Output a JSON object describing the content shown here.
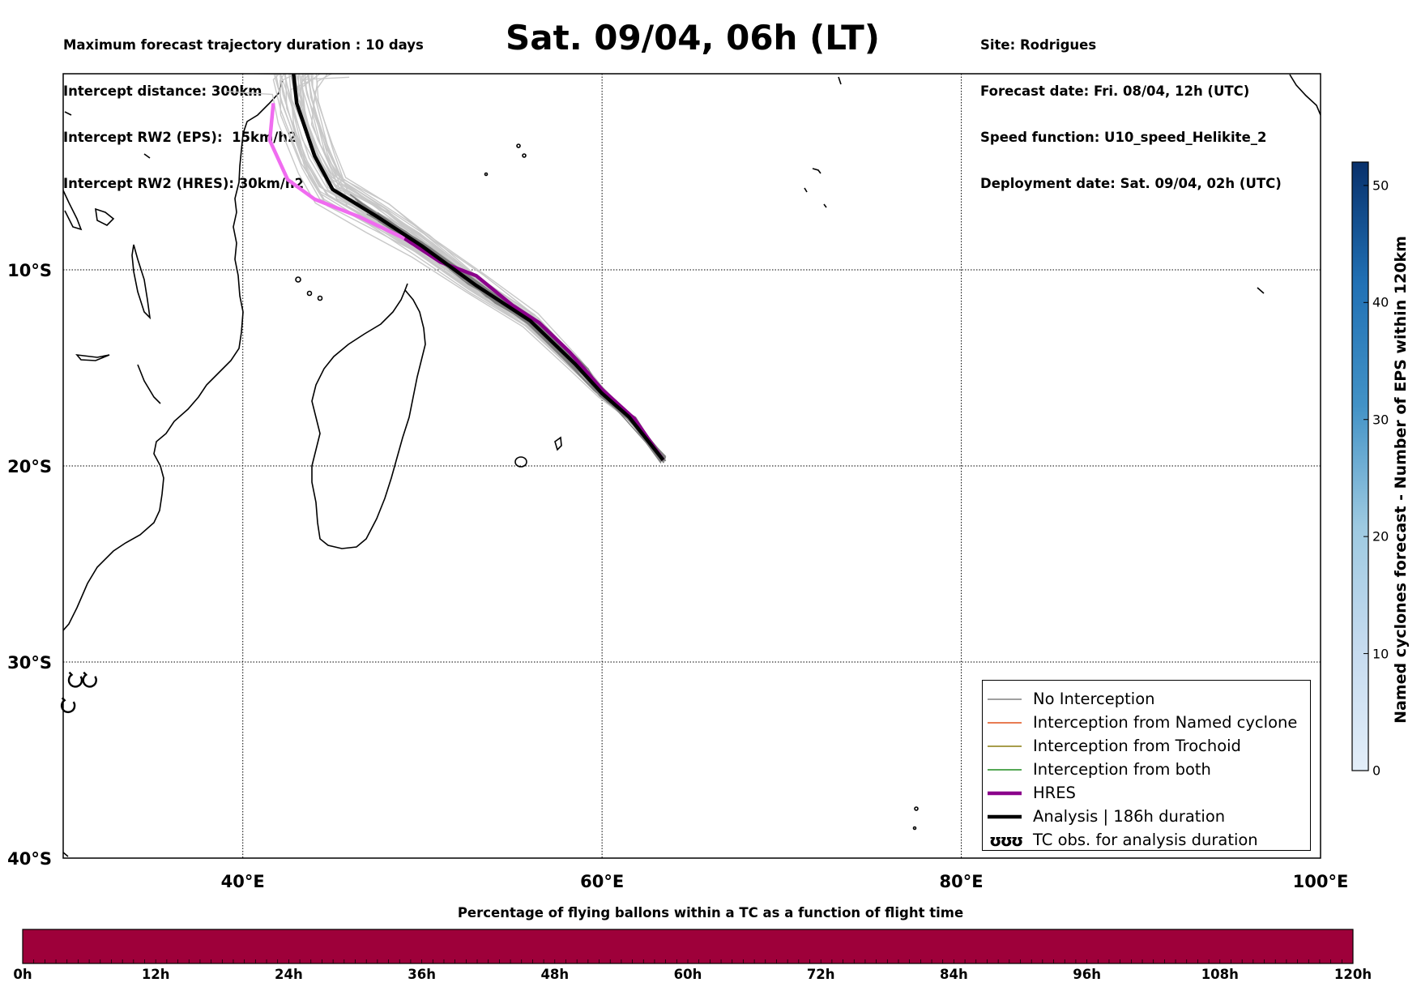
{
  "header": {
    "left_lines": [
      "Maximum forecast trajectory duration : 10 days",
      "Intercept distance: 300km",
      "Intercept RW2 (EPS):  15km/h2",
      "Intercept RW2 (HRES): 30km/h2"
    ],
    "title": "Sat. 09/04, 06h (LT)",
    "right_lines": [
      "Site: Rodrigues",
      "Forecast date: Fri. 08/04, 12h (UTC)",
      "Speed function: U10_speed_Helikite_2",
      "Deployment date: Sat. 09/04, 02h (UTC)"
    ]
  },
  "map": {
    "lon_range": [
      30,
      100
    ],
    "lat_range": [
      -40,
      0
    ],
    "lon_ticks": [
      {
        "value": 40,
        "label": "40°E"
      },
      {
        "value": 60,
        "label": "60°E"
      },
      {
        "value": 80,
        "label": "80°E"
      },
      {
        "value": 100,
        "label": "100°E"
      }
    ],
    "lat_ticks": [
      {
        "value": -10,
        "label": "10°S"
      },
      {
        "value": -20,
        "label": "20°S"
      },
      {
        "value": -30,
        "label": "30°S"
      },
      {
        "value": -40,
        "label": "40°S"
      }
    ],
    "release_site": [
      63.4,
      -19.7
    ],
    "colors": {
      "no_interception": "#808080",
      "named_cyclone": "#e0511a",
      "trochoid": "#8a7d10",
      "both": "#1e8c1e",
      "hres": "#8b008b",
      "hres_light": "#f06cf0",
      "analysis": "#000000"
    },
    "tc_obs_symbols": "ʊʊ"
  },
  "legend": {
    "items": [
      {
        "label": "No Interception"
      },
      {
        "label": "Interception from Named cyclone"
      },
      {
        "label": "Interception from Trochoid"
      },
      {
        "label": "Interception from both"
      },
      {
        "label": "HRES"
      },
      {
        "label": "Analysis | 186h duration"
      },
      {
        "label": "TC obs. for analysis duration",
        "symbol": "ʊʊʊ"
      }
    ]
  },
  "colorbar": {
    "title": "Named cyclones forecast - Number of EPS within 120km",
    "min": 0,
    "max": 52,
    "ticks": [
      "0",
      "10",
      "20",
      "30",
      "40",
      "50"
    ],
    "color_low": "#e3eef9",
    "color_high": "#08306b"
  },
  "bottom_bar": {
    "title": "Percentage of flying ballons within a TC as a function of flight time",
    "color": "#9e003a",
    "ticks": [
      "0h",
      "12h",
      "24h",
      "36h",
      "48h",
      "60h",
      "72h",
      "84h",
      "96h",
      "108h",
      "120h"
    ]
  }
}
